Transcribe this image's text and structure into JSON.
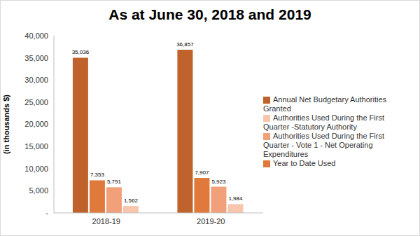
{
  "chart_data": {
    "type": "bar",
    "title": "As at June 30, 2018 and 2019",
    "y_label": "(in thousands $)",
    "categories": [
      "2018-19",
      "2019-20"
    ],
    "series": [
      {
        "name": "Annual Net Budgetary Authorities Granted",
        "color": "#c0622b",
        "values": [
          35036,
          36857
        ],
        "value_labels": [
          "35,036",
          "36,857"
        ]
      },
      {
        "name": "Year to Date Used",
        "color": "#e07a3c",
        "values": [
          7353,
          7907
        ],
        "value_labels": [
          "7,353",
          "7,907"
        ]
      },
      {
        "name": "Authorities Used During the First Quarter - Vote 1 - Net Operating Expenditures",
        "color": "#f2a07a",
        "values": [
          5791,
          5923
        ],
        "value_labels": [
          "5,791",
          "5,923"
        ]
      },
      {
        "name": "Authorities Used During the First Quarter  -Statutory Authority",
        "color": "#f7c6ad",
        "values": [
          1562,
          1984
        ],
        "value_labels": [
          "1,562",
          "1,984"
        ]
      }
    ],
    "ylim": [
      0,
      40000
    ],
    "yticks": [
      {
        "value": 0,
        "label": "-"
      },
      {
        "value": 5000,
        "label": "5,000"
      },
      {
        "value": 10000,
        "label": "10,000"
      },
      {
        "value": 15000,
        "label": "15,000"
      },
      {
        "value": 20000,
        "label": "20,000"
      },
      {
        "value": 25000,
        "label": "25,000"
      },
      {
        "value": 30000,
        "label": "30,000"
      },
      {
        "value": 35000,
        "label": "35,000"
      },
      {
        "value": 40000,
        "label": "40,000"
      }
    ],
    "grid": false,
    "legend": "right",
    "data_labels": true
  }
}
